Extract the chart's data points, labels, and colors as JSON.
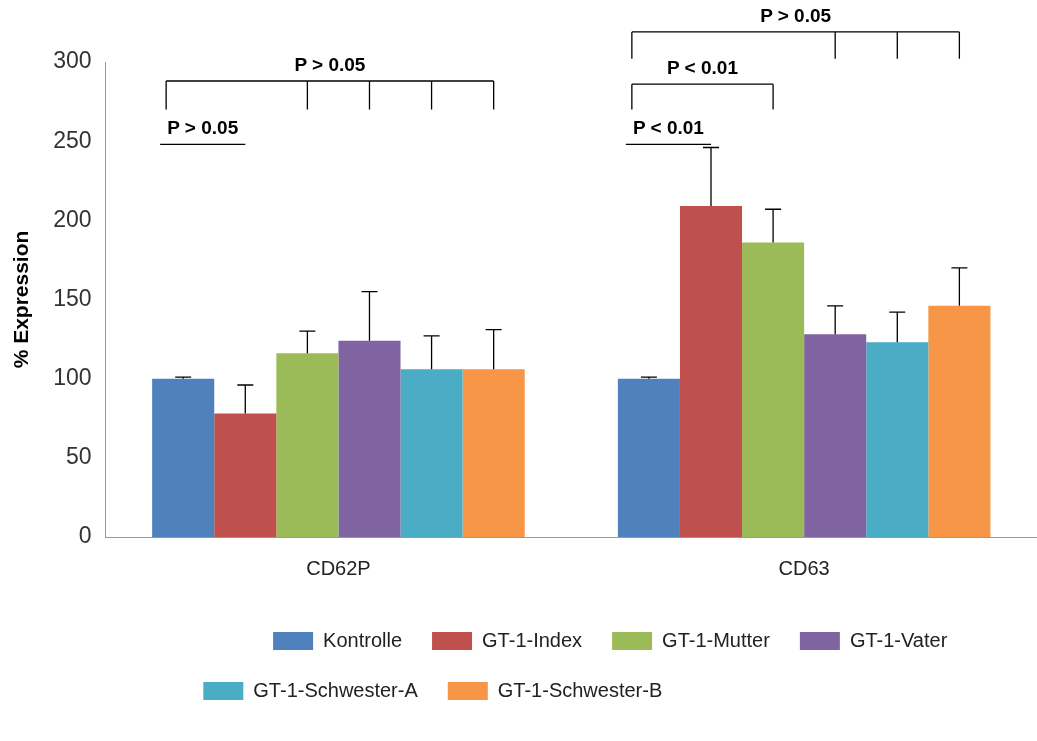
{
  "chart_data": {
    "type": "bar",
    "ylabel": "% Expression",
    "categories": [
      "CD62P",
      "CD63"
    ],
    "series": [
      {
        "name": "Kontrolle",
        "color": "#4f81bd",
        "values": [
          100,
          100
        ],
        "errors": [
          1,
          1
        ]
      },
      {
        "name": "GT-1-Index",
        "color": "#c0504d",
        "values": [
          78,
          209
        ],
        "errors": [
          18,
          37
        ]
      },
      {
        "name": "GT-1-Mutter",
        "color": "#9bbb59",
        "values": [
          116,
          186
        ],
        "errors": [
          14,
          21
        ]
      },
      {
        "name": "GT-1-Vater",
        "color": "#8064a2",
        "values": [
          124,
          128
        ],
        "errors": [
          31,
          18
        ]
      },
      {
        "name": "GT-1-Schwester-A",
        "color": "#4bacc6",
        "values": [
          106,
          123
        ],
        "errors": [
          21,
          19
        ]
      },
      {
        "name": "GT-1-Schwester-B",
        "color": "#f79646",
        "values": [
          106,
          146
        ],
        "errors": [
          25,
          24
        ]
      }
    ],
    "ylim": [
      0,
      300
    ],
    "yticks": [
      0,
      50,
      100,
      150,
      200,
      250,
      300
    ],
    "grid": false,
    "legend": "bottom",
    "annotations": [
      "P > 0.05",
      "P > 0.05",
      "P > 0.05",
      "P < 0.01",
      "P < 0.01"
    ]
  }
}
